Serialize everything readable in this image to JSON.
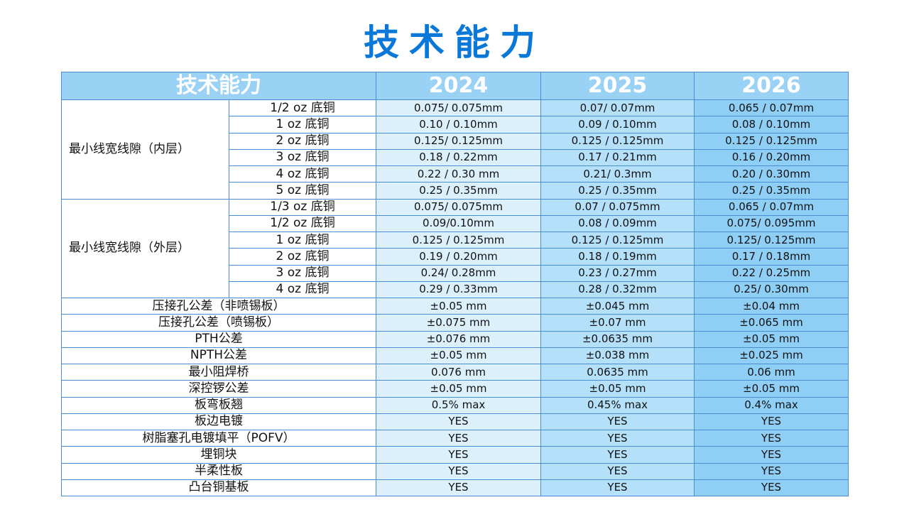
{
  "title": "技术能力",
  "table": {
    "header": [
      "技术能力",
      "2024",
      "2025",
      "2026"
    ],
    "groups": [
      {
        "label": "最小线宽线隙（内层）",
        "rows": [
          [
            "1/2 oz 底铜",
            "0.075/ 0.075mm",
            "0.07/ 0.07mm",
            "0.065 / 0.07mm"
          ],
          [
            "1 oz 底铜",
            "0.10 / 0.10mm",
            "0.09 / 0.10mm",
            "0.08 / 0.10mm"
          ],
          [
            "2 oz 底铜",
            "0.125/ 0.125mm",
            "0.125 / 0.125mm",
            "0.125 / 0.125mm"
          ],
          [
            "3 oz 底铜",
            "0.18 / 0.22mm",
            "0.17 / 0.21mm",
            "0.16 / 0.20mm"
          ],
          [
            "4 oz 底铜",
            "0.22 / 0.30 mm",
            "0.21/ 0.3mm",
            "0.20 / 0.30mm"
          ],
          [
            "5 oz 底铜",
            "0.25 / 0.35mm",
            "0.25 / 0.35mm",
            "0.25 / 0.35mm"
          ]
        ]
      },
      {
        "label": "最小线宽线隙（外层）",
        "rows": [
          [
            "1/3 oz 底铜",
            "0.075/ 0.075mm",
            "0.07 / 0.075mm",
            "0.065 / 0.07mm"
          ],
          [
            "1/2 oz 底铜",
            "0.09/0.10mm",
            "0.08 / 0.09mm",
            "0.075/ 0.095mm"
          ],
          [
            "1 oz 底铜",
            "0.125 / 0.125mm",
            "0.125 / 0.125mm",
            "0.125/ 0.125mm"
          ],
          [
            "2 oz 底铜",
            "0.19 / 0.20mm",
            "0.18 / 0.19mm",
            "0.17 / 0.18mm"
          ],
          [
            "3 oz 底铜",
            "0.24/ 0.28mm",
            "0.23 / 0.27mm",
            "0.22 / 0.25mm"
          ],
          [
            "4 oz 底铜",
            "0.29 / 0.33mm",
            "0.28 / 0.32mm",
            "0.25/ 0.30mm"
          ]
        ]
      }
    ],
    "rows": [
      [
        "压接孔公差（非喷锡板）",
        "±0.05 mm",
        "±0.045 mm",
        "±0.04 mm"
      ],
      [
        "压接孔公差（喷锡板）",
        "±0.075 mm",
        "±0.07 mm",
        "±0.065 mm"
      ],
      [
        "PTH公差",
        "±0.076 mm",
        "±0.0635 mm",
        "±0.05 mm"
      ],
      [
        "NPTH公差",
        "±0.05 mm",
        "±0.038 mm",
        "±0.025 mm"
      ],
      [
        "最小阻焊桥",
        "0.076 mm",
        "0.0635 mm",
        "0.06 mm"
      ],
      [
        "深控锣公差",
        "±0.05 mm",
        "±0.05 mm",
        "±0.05 mm"
      ],
      [
        "板弯板翘",
        "0.5% max",
        "0.45% max",
        "0.4% max"
      ],
      [
        "板边电镀",
        "YES",
        "YES",
        "YES"
      ],
      [
        "树脂塞孔电镀填平（POFV）",
        "YES",
        "YES",
        "YES"
      ],
      [
        "埋铜块",
        "YES",
        "YES",
        "YES"
      ],
      [
        "半柔性板",
        "YES",
        "YES",
        "YES"
      ],
      [
        "凸台铜基板",
        "YES",
        "YES",
        "YES"
      ]
    ]
  }
}
